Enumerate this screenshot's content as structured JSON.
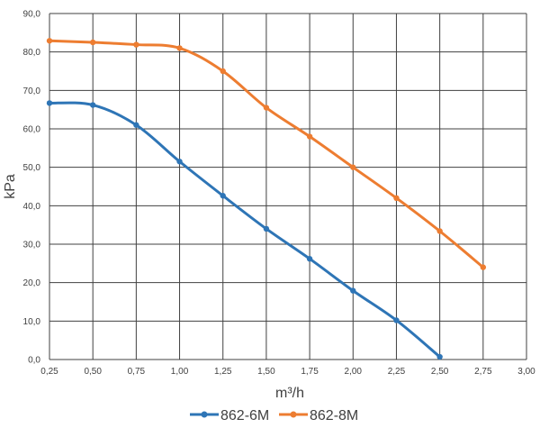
{
  "chart_data": {
    "type": "line",
    "title": "",
    "xlabel": "m³/h",
    "ylabel": "kPa",
    "xlim": [
      0.25,
      3.0
    ],
    "ylim": [
      0,
      90
    ],
    "x_ticks": [
      "0,25",
      "0,50",
      "0,75",
      "1,00",
      "1,25",
      "1,50",
      "1,75",
      "2,00",
      "2,25",
      "2,50",
      "2,75",
      "3,00"
    ],
    "y_ticks": [
      "0,0",
      "10,0",
      "20,0",
      "30,0",
      "40,0",
      "50,0",
      "60,0",
      "70,0",
      "80,0",
      "90,0"
    ],
    "grid": true,
    "legend_position": "bottom",
    "series": [
      {
        "name": "862-6M",
        "color": "#2e75b6",
        "x": [
          0.25,
          0.5,
          0.75,
          1.0,
          1.25,
          1.5,
          1.75,
          2.0,
          2.25,
          2.5
        ],
        "y": [
          66.7,
          66.2,
          61.0,
          51.5,
          42.6,
          34.0,
          26.2,
          17.9,
          10.2,
          0.7
        ]
      },
      {
        "name": "862-8M",
        "color": "#ed7d31",
        "x": [
          0.25,
          0.5,
          0.75,
          1.0,
          1.25,
          1.5,
          1.75,
          2.0,
          2.25,
          2.5,
          2.75
        ],
        "y": [
          82.9,
          82.5,
          81.9,
          81.0,
          75.0,
          65.5,
          58.0,
          50.0,
          42.0,
          33.4,
          24.0
        ]
      }
    ]
  }
}
